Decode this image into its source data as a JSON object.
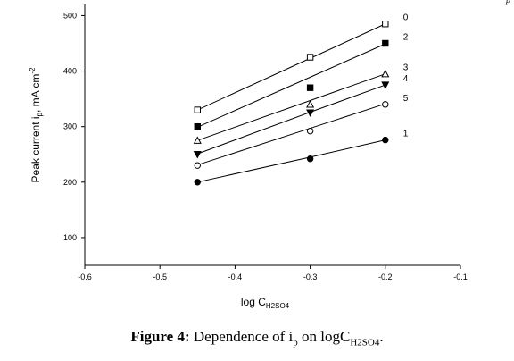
{
  "caption": {
    "label": "Figure 4:",
    "text_before": " Dependence of i",
    "sub_1": "p",
    "text_mid": " on logC",
    "sub_2": "H2SO4",
    "text_end": "."
  },
  "corner_mark": "p",
  "chart_data": {
    "type": "scatter",
    "title": "",
    "xlabel": {
      "main": "log C",
      "sub": "H2SO4"
    },
    "ylabel": {
      "part1": "Peak current i",
      "sub": "p",
      "part2": ", mA cm",
      "sup": "-2"
    },
    "xlim": [
      -0.6,
      -0.1
    ],
    "ylim": [
      50,
      520
    ],
    "xticks": [
      -0.6,
      -0.5,
      -0.4,
      -0.3,
      -0.2,
      -0.1
    ],
    "xtick_labels": [
      "-0.6",
      "-0.5",
      "-0.4",
      "-0.3",
      "-0.2",
      "-0.1"
    ],
    "yticks": [
      100,
      200,
      300,
      400,
      500
    ],
    "ytick_labels": [
      "100",
      "200",
      "300",
      "400",
      "500"
    ],
    "grid": false,
    "legend": "none",
    "x": [
      -0.45,
      -0.3,
      -0.2
    ],
    "series": [
      {
        "name": "0",
        "marker": "open-square",
        "values": [
          330,
          425,
          485
        ],
        "fit": [
          330,
          423,
          485
        ]
      },
      {
        "name": "2",
        "marker": "filled-square",
        "values": [
          300,
          370,
          450
        ],
        "fit": [
          299,
          389,
          449
        ]
      },
      {
        "name": "3",
        "marker": "open-triangle",
        "values": [
          275,
          340,
          395
        ],
        "fit": [
          275,
          347,
          395
        ]
      },
      {
        "name": "4",
        "marker": "filled-triangle-down",
        "values": [
          250,
          325,
          375
        ],
        "fit": [
          251,
          326,
          375
        ]
      },
      {
        "name": "5",
        "marker": "open-circle",
        "values": [
          230,
          292,
          340
        ],
        "fit": [
          231,
          297,
          341
        ]
      },
      {
        "name": "1",
        "marker": "filled-circle",
        "values": [
          200,
          242,
          276
        ],
        "fit": [
          200,
          245,
          276
        ]
      }
    ]
  }
}
